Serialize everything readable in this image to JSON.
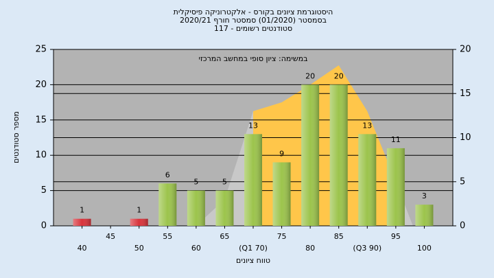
{
  "chart_data": {
    "type": "bar",
    "title": [
      "היסטוגרמת ציונים בקורס - אלקטרוניקה פיסיקלית",
      "בסמסטר  (01/2020)  סמסטר חורף 2020/21",
      "סטודנטים רשומים - 117"
    ],
    "annotation": "במשימה: ציון סופי במחשב המרכזי",
    "xlabel": "טווח ציונים",
    "ylabel": "מספר סטודנטים",
    "x": [
      40,
      45,
      50,
      55,
      60,
      65,
      70,
      75,
      80,
      85,
      90,
      95,
      100
    ],
    "values": [
      1,
      0,
      1,
      6,
      5,
      5,
      13,
      9,
      20,
      20,
      13,
      11,
      3
    ],
    "value_labels": [
      "1",
      null,
      "1",
      "6",
      "5",
      "5",
      "13",
      "9",
      "20",
      "20",
      "13",
      "11",
      "3"
    ],
    "colors": [
      "#d8343c",
      "#d8343c",
      "#d8343c",
      "#9cc44c",
      "#9cc44c",
      "#9cc44c",
      "#9cc44c",
      "#9cc44c",
      "#9cc44c",
      "#9cc44c",
      "#9cc44c",
      "#9cc44c",
      "#9cc44c"
    ],
    "areas": [
      {
        "color": "#c8c8c8",
        "axis": "y2",
        "x": [
          60,
          65,
          70,
          95,
          98
        ],
        "values": [
          0,
          3,
          13,
          5,
          0
        ]
      },
      {
        "color": "#ffc64a",
        "axis": "y2",
        "x": [
          70,
          75,
          80,
          85,
          90,
          95
        ],
        "values": [
          13,
          14,
          16,
          18.2,
          13,
          5
        ]
      }
    ],
    "xlim": [
      35,
      105
    ],
    "xticks": [
      40,
      45,
      50,
      55,
      60,
      65,
      {
        "value": 70,
        "label": "(Q1 70)"
      },
      75,
      80,
      85,
      {
        "value": 90,
        "label": "(Q3 90)"
      },
      95,
      100
    ],
    "ylim": [
      0,
      25
    ],
    "yticks": [
      0,
      5,
      10,
      15,
      20,
      25
    ],
    "y2lim": [
      0,
      20
    ],
    "y2ticks": [
      0,
      5,
      10,
      15,
      20
    ],
    "grid": true
  }
}
